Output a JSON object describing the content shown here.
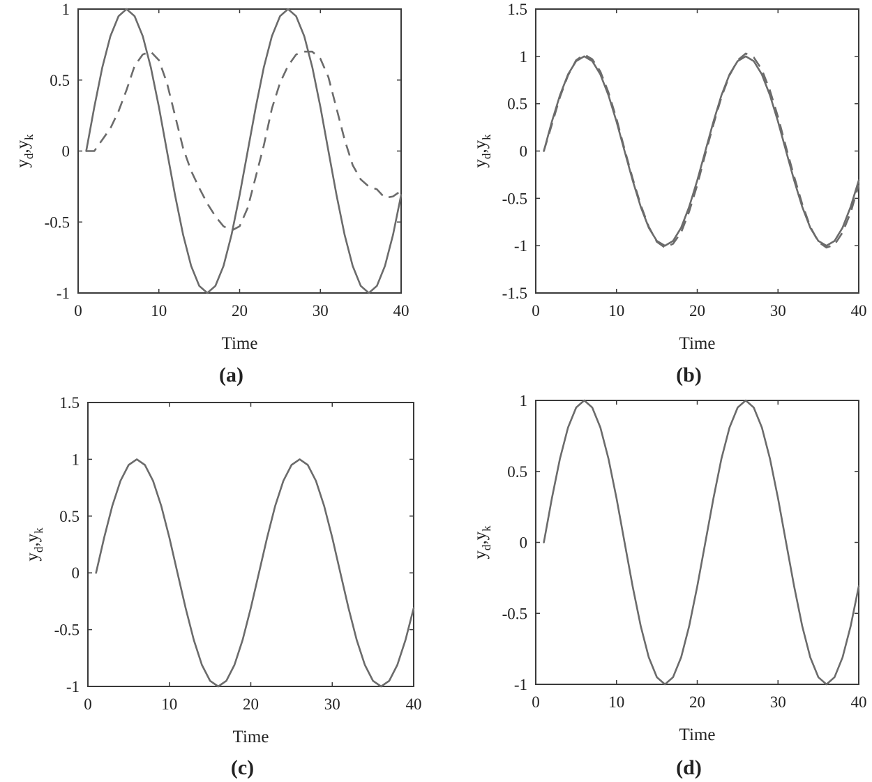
{
  "colors": {
    "line": "#6b6b6b",
    "axes": "#3a3a3a",
    "text": "#222222"
  },
  "chart_data": [
    {
      "type": "line",
      "panel_label": "(a)",
      "xlabel": "Time",
      "ylabel": {
        "main1": "y",
        "sub1": "d",
        "comma": ",",
        "main2": "y",
        "sub2": "k"
      },
      "xlim": [
        0,
        40
      ],
      "ylim": [
        -1,
        1
      ],
      "xticks": [
        0,
        10,
        20,
        30,
        40
      ],
      "xtick_labels": [
        "0",
        "10",
        "20",
        "30",
        "40"
      ],
      "yticks": [
        -1,
        -0.5,
        0,
        0.5,
        1
      ],
      "ytick_labels": [
        "-1",
        "-0.5",
        "0",
        "0.5",
        "1"
      ],
      "grid": false,
      "series": [
        {
          "style": "solid",
          "x": [
            1,
            2,
            3,
            4,
            5,
            6,
            7,
            8,
            9,
            10,
            11,
            12,
            13,
            14,
            15,
            16,
            17,
            18,
            19,
            20,
            21,
            22,
            23,
            24,
            25,
            26,
            27,
            28,
            29,
            30,
            31,
            32,
            33,
            34,
            35,
            36,
            37,
            38,
            39,
            40
          ],
          "y": [
            0,
            0.31,
            0.59,
            0.81,
            0.95,
            1.0,
            0.95,
            0.81,
            0.59,
            0.31,
            0,
            -0.31,
            -0.59,
            -0.81,
            -0.95,
            -1.0,
            -0.95,
            -0.81,
            -0.59,
            -0.31,
            0,
            0.31,
            0.59,
            0.81,
            0.95,
            1.0,
            0.95,
            0.81,
            0.59,
            0.31,
            0,
            -0.31,
            -0.59,
            -0.81,
            -0.95,
            -1.0,
            -0.95,
            -0.81,
            -0.59,
            -0.31
          ]
        },
        {
          "style": "dashed",
          "x": [
            1,
            2,
            3,
            4,
            5,
            6,
            7,
            8,
            9,
            10,
            11,
            12,
            13,
            14,
            15,
            16,
            17,
            18,
            19,
            20,
            21,
            22,
            23,
            24,
            25,
            26,
            27,
            28,
            29,
            30,
            31,
            32,
            33,
            34,
            35,
            36,
            37,
            38,
            39,
            40
          ],
          "y": [
            0,
            0,
            0.08,
            0.16,
            0.28,
            0.43,
            0.6,
            0.68,
            0.7,
            0.64,
            0.48,
            0.25,
            0.02,
            -0.14,
            -0.26,
            -0.37,
            -0.46,
            -0.53,
            -0.56,
            -0.53,
            -0.4,
            -0.18,
            0.04,
            0.3,
            0.48,
            0.6,
            0.68,
            0.7,
            0.7,
            0.65,
            0.52,
            0.3,
            0.08,
            -0.1,
            -0.2,
            -0.25,
            -0.27,
            -0.33,
            -0.32,
            -0.28
          ]
        }
      ]
    },
    {
      "type": "line",
      "panel_label": "(b)",
      "xlabel": "Time",
      "ylabel": {
        "main1": "y",
        "sub1": "d",
        "comma": ",",
        "main2": "y",
        "sub2": "k"
      },
      "xlim": [
        0,
        40
      ],
      "ylim": [
        -1.5,
        1.5
      ],
      "xticks": [
        0,
        10,
        20,
        30,
        40
      ],
      "xtick_labels": [
        "0",
        "10",
        "20",
        "30",
        "40"
      ],
      "yticks": [
        -1.5,
        -1,
        -0.5,
        0,
        0.5,
        1,
        1.5
      ],
      "ytick_labels": [
        "-1.5",
        "-1",
        "-0.5",
        "0",
        "0.5",
        "1",
        "1.5"
      ],
      "grid": false,
      "series": [
        {
          "style": "solid",
          "x": [
            1,
            2,
            3,
            4,
            5,
            6,
            7,
            8,
            9,
            10,
            11,
            12,
            13,
            14,
            15,
            16,
            17,
            18,
            19,
            20,
            21,
            22,
            23,
            24,
            25,
            26,
            27,
            28,
            29,
            30,
            31,
            32,
            33,
            34,
            35,
            36,
            37,
            38,
            39,
            40
          ],
          "y": [
            0,
            0.31,
            0.59,
            0.81,
            0.95,
            1.0,
            0.95,
            0.81,
            0.59,
            0.31,
            0,
            -0.31,
            -0.59,
            -0.81,
            -0.95,
            -1.0,
            -0.95,
            -0.81,
            -0.59,
            -0.31,
            0,
            0.31,
            0.59,
            0.81,
            0.95,
            1.0,
            0.95,
            0.81,
            0.59,
            0.31,
            0,
            -0.31,
            -0.59,
            -0.81,
            -0.95,
            -1.0,
            -0.95,
            -0.81,
            -0.59,
            -0.31
          ]
        },
        {
          "style": "dashed",
          "x": [
            1,
            2,
            3,
            4,
            5,
            6,
            7,
            8,
            9,
            10,
            11,
            12,
            13,
            14,
            15,
            16,
            17,
            18,
            19,
            20,
            21,
            22,
            23,
            24,
            25,
            26,
            27,
            28,
            29,
            30,
            31,
            32,
            33,
            34,
            35,
            36,
            37,
            38,
            39,
            40
          ],
          "y": [
            0,
            0.28,
            0.57,
            0.8,
            0.96,
            1.02,
            0.97,
            0.84,
            0.62,
            0.34,
            0.02,
            -0.29,
            -0.57,
            -0.8,
            -0.96,
            -1.02,
            -0.98,
            -0.86,
            -0.64,
            -0.36,
            -0.03,
            0.28,
            0.57,
            0.8,
            0.96,
            1.03,
            0.99,
            0.86,
            0.64,
            0.36,
            0.04,
            -0.27,
            -0.56,
            -0.8,
            -0.96,
            -1.02,
            -0.99,
            -0.86,
            -0.65,
            -0.36
          ]
        }
      ]
    },
    {
      "type": "line",
      "panel_label": "(c)",
      "xlabel": "Time",
      "ylabel": {
        "main1": "y",
        "sub1": "d",
        "comma": ",",
        "main2": "y",
        "sub2": "k"
      },
      "xlim": [
        0,
        40
      ],
      "ylim": [
        -1,
        1.5
      ],
      "xticks": [
        0,
        10,
        20,
        30,
        40
      ],
      "xtick_labels": [
        "0",
        "10",
        "20",
        "30",
        "40"
      ],
      "yticks": [
        -1,
        -0.5,
        0,
        0.5,
        1,
        1.5
      ],
      "ytick_labels": [
        "-1",
        "-0.5",
        "0",
        "0.5",
        "1",
        "1.5"
      ],
      "grid": false,
      "series": [
        {
          "style": "solid",
          "x": [
            1,
            2,
            3,
            4,
            5,
            6,
            7,
            8,
            9,
            10,
            11,
            12,
            13,
            14,
            15,
            16,
            17,
            18,
            19,
            20,
            21,
            22,
            23,
            24,
            25,
            26,
            27,
            28,
            29,
            30,
            31,
            32,
            33,
            34,
            35,
            36,
            37,
            38,
            39,
            40
          ],
          "y": [
            0,
            0.31,
            0.59,
            0.81,
            0.95,
            1.0,
            0.95,
            0.81,
            0.59,
            0.31,
            0,
            -0.31,
            -0.59,
            -0.81,
            -0.95,
            -1.0,
            -0.95,
            -0.81,
            -0.59,
            -0.31,
            0,
            0.31,
            0.59,
            0.81,
            0.95,
            1.0,
            0.95,
            0.81,
            0.59,
            0.31,
            0,
            -0.31,
            -0.59,
            -0.81,
            -0.95,
            -1.0,
            -0.95,
            -0.81,
            -0.59,
            -0.31
          ]
        }
      ]
    },
    {
      "type": "line",
      "panel_label": "(d)",
      "xlabel": "Time",
      "ylabel": {
        "main1": "y",
        "sub1": "d",
        "comma": ",",
        "main2": "y",
        "sub2": "k"
      },
      "xlim": [
        0,
        40
      ],
      "ylim": [
        -1,
        1
      ],
      "xticks": [
        0,
        10,
        20,
        30,
        40
      ],
      "xtick_labels": [
        "0",
        "10",
        "20",
        "30",
        "40"
      ],
      "yticks": [
        -1,
        -0.5,
        0,
        0.5,
        1
      ],
      "ytick_labels": [
        "-1",
        "-0.5",
        "0",
        "0.5",
        "1"
      ],
      "grid": false,
      "series": [
        {
          "style": "solid",
          "x": [
            1,
            2,
            3,
            4,
            5,
            6,
            7,
            8,
            9,
            10,
            11,
            12,
            13,
            14,
            15,
            16,
            17,
            18,
            19,
            20,
            21,
            22,
            23,
            24,
            25,
            26,
            27,
            28,
            29,
            30,
            31,
            32,
            33,
            34,
            35,
            36,
            37,
            38,
            39,
            40
          ],
          "y": [
            0,
            0.31,
            0.59,
            0.81,
            0.95,
            1.0,
            0.95,
            0.81,
            0.59,
            0.31,
            0,
            -0.31,
            -0.59,
            -0.81,
            -0.95,
            -1.0,
            -0.95,
            -0.81,
            -0.59,
            -0.31,
            0,
            0.31,
            0.59,
            0.81,
            0.95,
            1.0,
            0.95,
            0.81,
            0.59,
            0.31,
            0,
            -0.31,
            -0.59,
            -0.81,
            -0.95,
            -1.0,
            -0.95,
            -0.81,
            -0.59,
            -0.31
          ]
        }
      ]
    }
  ]
}
